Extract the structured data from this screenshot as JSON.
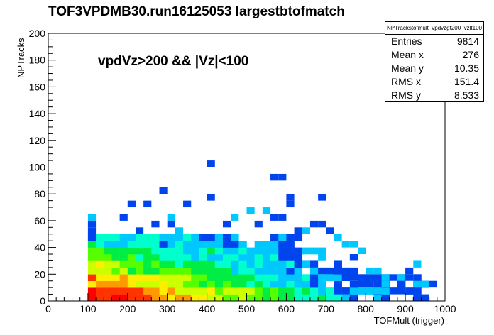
{
  "chart_data": {
    "type": "heatmap",
    "title": "TOF3VPDMB30.run16125053 largestbtofmatch",
    "annotation": "vpdVz>200 && |Vz|<100",
    "xlabel": "TOFMult (trigger)",
    "ylabel": "NPTracks",
    "xlim": [
      0,
      1000
    ],
    "ylim": [
      0,
      200
    ],
    "x_ticks": [
      "0",
      "100",
      "200",
      "300",
      "400",
      "500",
      "600",
      "700",
      "800",
      "900",
      "1000"
    ],
    "y_ticks": [
      "0",
      "20",
      "40",
      "60",
      "80",
      "100",
      "120",
      "140",
      "160",
      "180",
      "200"
    ],
    "bin_width_x": 20,
    "bin_width_y": 5,
    "colors": [
      "#0044ee",
      "#00c8ff",
      "#00ffcc",
      "#00ee44",
      "#55ff00",
      "#ccff00",
      "#ffee00",
      "#ff9900",
      "#ff3300",
      "#ff0000"
    ],
    "stats": {
      "name": "NPTrackstofmult_vpdvzgt200_vzlt100",
      "rows": [
        {
          "label": "Entries",
          "value": "9814"
        },
        {
          "label": "Mean x",
          "value": "276"
        },
        {
          "label": "Mean y",
          "value": "10.35"
        },
        {
          "label": "RMS x",
          "value": "151.4"
        },
        {
          "label": "RMS y",
          "value": "8.533"
        }
      ]
    },
    "isolated_bins": [
      [
        400,
        100
      ],
      [
        280,
        80
      ],
      [
        240,
        70
      ],
      [
        340,
        70
      ],
      [
        400,
        75
      ],
      [
        560,
        90
      ],
      [
        580,
        90
      ],
      [
        600,
        75
      ],
      [
        600,
        70
      ],
      [
        680,
        75
      ],
      [
        300,
        60
      ],
      [
        500,
        65
      ],
      [
        540,
        65
      ],
      [
        560,
        60
      ],
      [
        580,
        60
      ],
      [
        100,
        60
      ],
      [
        100,
        55
      ],
      [
        100,
        50
      ],
      [
        100,
        45
      ],
      [
        200,
        70
      ],
      [
        180,
        45
      ],
      [
        180,
        60
      ],
      [
        220,
        50
      ],
      [
        260,
        55
      ],
      [
        300,
        55
      ],
      [
        320,
        50
      ],
      [
        380,
        45
      ],
      [
        400,
        45
      ],
      [
        440,
        55
      ],
      [
        460,
        60
      ],
      [
        520,
        55
      ],
      [
        620,
        50
      ],
      [
        640,
        50
      ],
      [
        660,
        55
      ],
      [
        680,
        55
      ],
      [
        700,
        50
      ],
      [
        720,
        45
      ],
      [
        740,
        40
      ],
      [
        760,
        40
      ],
      [
        780,
        35
      ],
      [
        760,
        30
      ],
      [
        800,
        20
      ],
      [
        820,
        20
      ],
      [
        840,
        15
      ],
      [
        860,
        15
      ],
      [
        880,
        15
      ],
      [
        900,
        15
      ],
      [
        920,
        10
      ],
      [
        940,
        10
      ],
      [
        960,
        10
      ],
      [
        900,
        20
      ],
      [
        920,
        25
      ],
      [
        880,
        5
      ],
      [
        860,
        5
      ],
      [
        840,
        10
      ],
      [
        820,
        5
      ],
      [
        800,
        10
      ],
      [
        780,
        10
      ],
      [
        760,
        15
      ],
      [
        740,
        5
      ],
      [
        720,
        5
      ],
      [
        700,
        15
      ],
      [
        680,
        20
      ],
      [
        660,
        25
      ],
      [
        640,
        25
      ],
      [
        620,
        30
      ]
    ]
  }
}
